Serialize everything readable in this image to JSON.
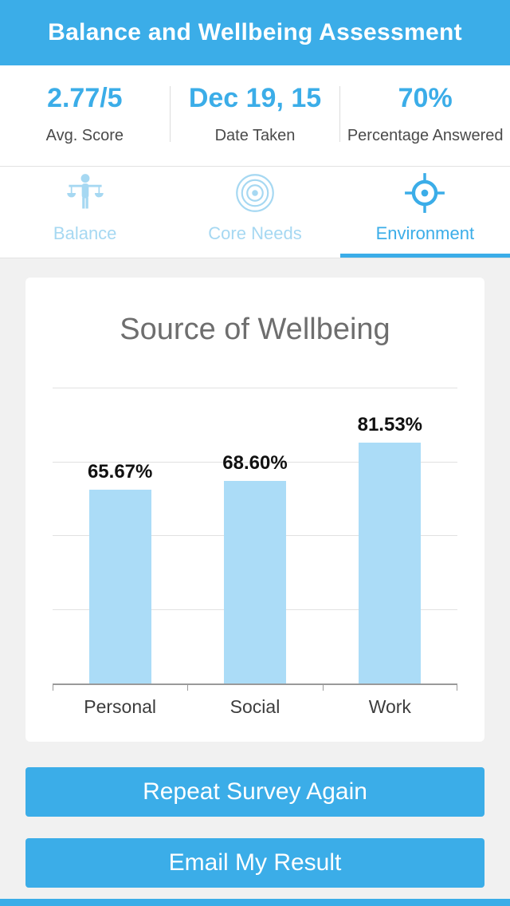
{
  "header": {
    "title": "Balance and Wellbeing Assessment"
  },
  "stats": [
    {
      "value": "2.77/5",
      "label": "Avg. Score"
    },
    {
      "value": "Dec 19, 15",
      "label": "Date Taken"
    },
    {
      "value": "70%",
      "label": "Percentage Answered"
    }
  ],
  "tabs": [
    {
      "label": "Balance",
      "icon": "balance-scales-person-icon",
      "active": false
    },
    {
      "label": "Core Needs",
      "icon": "concentric-rings-icon",
      "active": false
    },
    {
      "label": "Environment",
      "icon": "crosshair-target-icon",
      "active": true
    }
  ],
  "chart_data": {
    "type": "bar",
    "title": "Source of Wellbeing",
    "categories": [
      "Personal",
      "Social",
      "Work"
    ],
    "values": [
      65.67,
      68.6,
      81.53
    ],
    "value_labels": [
      "65.67%",
      "68.60%",
      "81.53%"
    ],
    "ylim": [
      0,
      100
    ],
    "gridline_interval": 25,
    "grid": true,
    "bar_color": "#abdcf7"
  },
  "buttons": [
    {
      "label": "Repeat Survey Again"
    },
    {
      "label": "Email My Result"
    }
  ],
  "colors": {
    "accent": "#3bade8",
    "inactive_tab": "#a6d8f2",
    "bar": "#abdcf7",
    "background": "#f1f1f1"
  }
}
